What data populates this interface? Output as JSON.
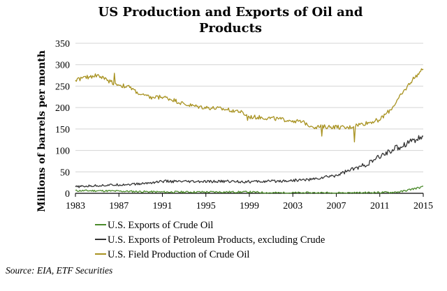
{
  "chart_data": {
    "type": "line",
    "title_line1": "US Production and Exports of Oil and",
    "title_line2": "Products",
    "ylabel": "Millions of barrels per month",
    "xlabel": "",
    "ylim": [
      0,
      350
    ],
    "xlim": [
      1983,
      2015
    ],
    "y_ticks": [
      "0",
      "50",
      "100",
      "150",
      "200",
      "250",
      "300",
      "350"
    ],
    "x_ticks": [
      "1983",
      "1987",
      "1991",
      "1995",
      "1999",
      "2003",
      "2007",
      "2011",
      "2015"
    ],
    "grid": "horizontal",
    "series": [
      {
        "name": "U.S. Exports of Crude Oil",
        "color": "#4a8a2a",
        "x": [
          1983,
          1985,
          1987,
          1989,
          1991,
          1993,
          1995,
          1997,
          1999,
          2001,
          2003,
          2005,
          2007,
          2009,
          2011,
          2012,
          2013,
          2014,
          2015
        ],
        "values": [
          6,
          6,
          5,
          4,
          3,
          3,
          3,
          3,
          3,
          1,
          1,
          1,
          1,
          1,
          2,
          2,
          4,
          10,
          15
        ]
      },
      {
        "name": "U.S. Exports of Petroleum Products, excluding Crude",
        "color": "#333333",
        "x": [
          1983,
          1985,
          1987,
          1989,
          1991,
          1993,
          1995,
          1997,
          1999,
          2001,
          2003,
          2005,
          2006,
          2007,
          2008,
          2009,
          2010,
          2011,
          2012,
          2013,
          2014,
          2015
        ],
        "values": [
          15,
          18,
          20,
          22,
          28,
          27,
          27,
          28,
          27,
          28,
          30,
          33,
          38,
          42,
          52,
          60,
          70,
          85,
          100,
          110,
          125,
          130
        ]
      },
      {
        "name": "U.S. Field Production of Crude Oil",
        "color": "#a89220",
        "x": [
          1983,
          1984,
          1985,
          1986,
          1987,
          1988,
          1989,
          1990,
          1991,
          1992,
          1993,
          1994,
          1995,
          1996,
          1997,
          1998,
          1999,
          2000,
          2001,
          2002,
          2003,
          2004,
          2005,
          2006,
          2007,
          2008,
          2009,
          2010,
          2011,
          2012,
          2013,
          2014,
          2015
        ],
        "values": [
          265,
          270,
          276,
          263,
          253,
          247,
          230,
          223,
          225,
          218,
          208,
          203,
          200,
          198,
          195,
          192,
          178,
          177,
          175,
          172,
          170,
          165,
          155,
          155,
          155,
          152,
          160,
          165,
          172,
          195,
          230,
          265,
          290
        ]
      }
    ]
  },
  "source": "Source: EIA, ETF Securities"
}
